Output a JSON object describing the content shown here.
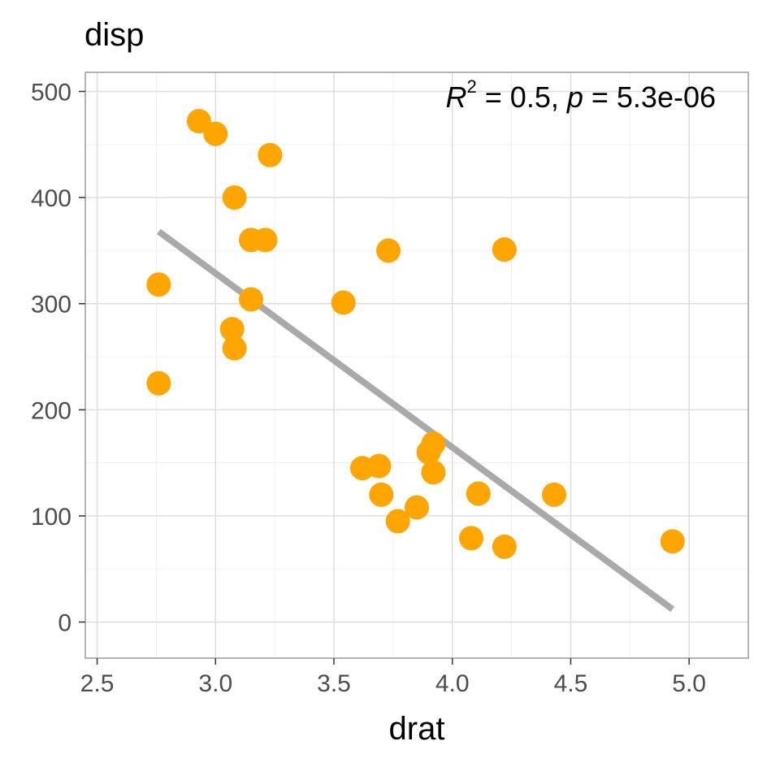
{
  "chart_data": {
    "type": "scatter",
    "title": "disp",
    "xlabel": "drat",
    "ylabel": "",
    "xlim": [
      2.45,
      5.25
    ],
    "ylim": [
      -34,
      518
    ],
    "x_ticks": [
      2.5,
      3.0,
      3.5,
      4.0,
      4.5,
      5.0
    ],
    "x_tick_labels": [
      "2.5",
      "3.0",
      "3.5",
      "4.0",
      "4.5",
      "5.0"
    ],
    "y_ticks": [
      0,
      100,
      200,
      300,
      400,
      500
    ],
    "y_tick_labels": [
      "0",
      "100",
      "200",
      "300",
      "400",
      "500"
    ],
    "grid": true,
    "legend": "none",
    "point_color": "#FFA500",
    "line_color": "#A9A9A9",
    "points": [
      {
        "x": 2.93,
        "y": 472
      },
      {
        "x": 3.0,
        "y": 460
      },
      {
        "x": 3.23,
        "y": 440
      },
      {
        "x": 3.08,
        "y": 400
      },
      {
        "x": 3.15,
        "y": 360
      },
      {
        "x": 3.21,
        "y": 360
      },
      {
        "x": 3.73,
        "y": 350
      },
      {
        "x": 4.22,
        "y": 351
      },
      {
        "x": 2.76,
        "y": 318
      },
      {
        "x": 3.15,
        "y": 304
      },
      {
        "x": 3.54,
        "y": 301
      },
      {
        "x": 3.07,
        "y": 276
      },
      {
        "x": 3.08,
        "y": 258
      },
      {
        "x": 2.76,
        "y": 225
      },
      {
        "x": 3.92,
        "y": 168
      },
      {
        "x": 3.9,
        "y": 160
      },
      {
        "x": 3.62,
        "y": 145
      },
      {
        "x": 3.69,
        "y": 147
      },
      {
        "x": 3.92,
        "y": 141
      },
      {
        "x": 3.7,
        "y": 120
      },
      {
        "x": 4.11,
        "y": 121
      },
      {
        "x": 4.43,
        "y": 120
      },
      {
        "x": 3.85,
        "y": 108
      },
      {
        "x": 3.77,
        "y": 95
      },
      {
        "x": 4.08,
        "y": 79
      },
      {
        "x": 4.22,
        "y": 71
      },
      {
        "x": 4.93,
        "y": 76
      }
    ],
    "regression_line": {
      "x": [
        2.76,
        4.93
      ],
      "y": [
        368,
        12
      ]
    },
    "annotation": {
      "r_label": "R",
      "r_sup": "2",
      "r_value": " = 0.5, ",
      "p_label": "p",
      "p_value": " = 5.3e-06"
    }
  }
}
